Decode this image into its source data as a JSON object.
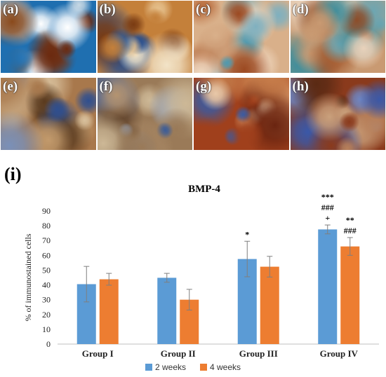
{
  "panels": [
    {
      "label": "(a)",
      "colors": [
        "#1f6fb0",
        "#8a4a1c",
        "#c7d8e4",
        "#6b2a10",
        "#3b84c1",
        "#ffffff"
      ]
    },
    {
      "label": "(b)",
      "colors": [
        "#c4803a",
        "#2e5fa0",
        "#e6c18d",
        "#7a3b12",
        "#274d8c",
        "#f2e3c7"
      ]
    },
    {
      "label": "(c)",
      "colors": [
        "#d9b08a",
        "#4f9ab0",
        "#9c4a22",
        "#f0d8c0",
        "#7fb0bf",
        "#b86a3b"
      ]
    },
    {
      "label": "(d)",
      "colors": [
        "#c99a72",
        "#3f8e9c",
        "#8c4d2a",
        "#e9d2bb",
        "#6da6b2",
        "#a86035"
      ]
    },
    {
      "label": "(e)",
      "colors": [
        "#a8784c",
        "#2f4f8f",
        "#d8c09c",
        "#5a3a1e",
        "#7a90b8",
        "#c29a6c"
      ]
    },
    {
      "label": "(f)",
      "colors": [
        "#9a7a58",
        "#3a5c99",
        "#cdb896",
        "#5e4028",
        "#8aa0c4",
        "#b59470"
      ]
    },
    {
      "label": "(g)",
      "colors": [
        "#a0401c",
        "#c67c4a",
        "#e8c8a8",
        "#6a2410",
        "#3b5aa0",
        "#d89a6a"
      ]
    },
    {
      "label": "(h)",
      "colors": [
        "#8a3a1c",
        "#3a58a8",
        "#c9a07c",
        "#5a2a14",
        "#6e86c4",
        "#b8805a"
      ]
    }
  ],
  "figure_label": "(i)",
  "chart_data": {
    "type": "bar",
    "title": "BMP-4",
    "ylabel": "% of immunostained cells",
    "xlabel": "",
    "ylim": [
      0,
      90
    ],
    "yticks": [
      0,
      10,
      20,
      30,
      40,
      50,
      60,
      70,
      80,
      90
    ],
    "categories": [
      "Group I",
      "Group II",
      "Group III",
      "Group IV"
    ],
    "series": [
      {
        "name": "2 weeks",
        "color": "#5b9bd5",
        "values": [
          40.5,
          44.8,
          57.5,
          77.5
        ],
        "errors": [
          12.0,
          3.0,
          12.0,
          3.0
        ]
      },
      {
        "name": "4 weeks",
        "color": "#ed7d31",
        "values": [
          43.8,
          30.0,
          52.3,
          66.0
        ],
        "errors": [
          4.0,
          7.0,
          7.0,
          6.0
        ]
      }
    ],
    "annotations": [
      {
        "category": "Group III",
        "series": "2 weeks",
        "lines": [
          "*"
        ]
      },
      {
        "category": "Group IV",
        "series": "2 weeks",
        "lines": [
          "***",
          "###",
          "+"
        ]
      },
      {
        "category": "Group IV",
        "series": "4 weeks",
        "lines": [
          "**",
          "###"
        ]
      }
    ],
    "legend_position": "bottom",
    "grid": false
  }
}
